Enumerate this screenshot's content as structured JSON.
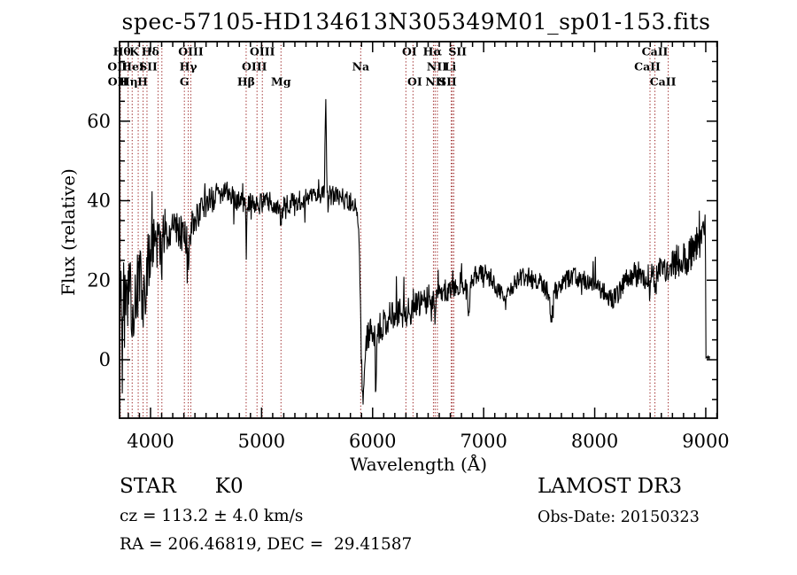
{
  "title": "spec-57105-HD134613N305349M01_sp01-153.fits",
  "footer": {
    "class_label": "STAR",
    "subclass": "K0",
    "cz": "cz = 113.2 ± 4.0 km/s",
    "radec": "RA = 206.46819, DEC =  29.41587",
    "survey": "LAMOST DR3",
    "obs_date": "Obs-Date: 20150323"
  },
  "chart_data": {
    "type": "line",
    "title": "spec-57105-HD134613N305349M01_sp01-153.fits",
    "xlabel": "Wavelength (Å)",
    "ylabel": "Flux (relative)",
    "xlim": [
      3721,
      9104
    ],
    "ylim": [
      -14.7,
      80
    ],
    "x_major_ticks": [
      4000,
      5000,
      6000,
      7000,
      8000,
      9000
    ],
    "x_minor_step": 100,
    "y_major_ticks": [
      0,
      20,
      40,
      60
    ],
    "y_minor_step": 5,
    "grid": false,
    "legend": "none",
    "line_color": "#000000",
    "marker_color": "#a13030",
    "label_row_y": {
      "1": 58,
      "2": 75,
      "3": 92
    },
    "line_markers": [
      {
        "label": "Hθ",
        "wavelength": 3798,
        "row": 1,
        "dx": -7
      },
      {
        "label": "K",
        "wavelength": 3933,
        "row": 1,
        "dx": -10
      },
      {
        "label": "Hδ",
        "wavelength": 4102,
        "row": 1,
        "dx": -13
      },
      {
        "label": "OIII",
        "wavelength": 4363,
        "row": 1,
        "dx": 0
      },
      {
        "label": "OIII",
        "wavelength": 5007,
        "row": 1,
        "dx": 0
      },
      {
        "label": "OI",
        "wavelength": 6300,
        "row": 1,
        "dx": 4
      },
      {
        "label": "Hα",
        "wavelength": 6563,
        "row": 1,
        "dx": -3
      },
      {
        "label": "SII",
        "wavelength": 6717,
        "row": 1,
        "dx": 6
      },
      {
        "label": "CaII",
        "wavelength": 8542,
        "row": 1,
        "dx": 0
      },
      {
        "label": "OII",
        "wavelength": 3726,
        "row": 2,
        "dx": -3
      },
      {
        "label": "HeI",
        "wavelength": 3889,
        "row": 2,
        "dx": -6
      },
      {
        "label": "SII",
        "wavelength": 4068,
        "row": 2,
        "dx": -11
      },
      {
        "label": "Hγ",
        "wavelength": 4340,
        "row": 2,
        "dx": 0
      },
      {
        "label": "OIII",
        "wavelength": 4959,
        "row": 2,
        "dx": -3
      },
      {
        "label": "Na",
        "wavelength": 5893,
        "row": 2,
        "dx": 0
      },
      {
        "label": "NII",
        "wavelength": 6548,
        "row": 2,
        "dx": 4
      },
      {
        "label": "Li",
        "wavelength": 6708,
        "row": 2,
        "dx": -1
      },
      {
        "label": "CaII",
        "wavelength": 8498,
        "row": 2,
        "dx": -3
      },
      {
        "label": "OII",
        "wavelength": 3729,
        "row": 3,
        "dx": -3
      },
      {
        "label": "Hη",
        "wavelength": 3835,
        "row": 3,
        "dx": -4
      },
      {
        "label": "H",
        "wavelength": 3968,
        "row": 3,
        "dx": -5
      },
      {
        "label": "G",
        "wavelength": 4305,
        "row": 3,
        "dx": 0
      },
      {
        "label": "Hβ",
        "wavelength": 4861,
        "row": 3,
        "dx": 0
      },
      {
        "label": "Mg",
        "wavelength": 5175,
        "row": 3,
        "dx": 0
      },
      {
        "label": "OI",
        "wavelength": 6364,
        "row": 3,
        "dx": 2
      },
      {
        "label": "NII",
        "wavelength": 6583,
        "row": 3,
        "dx": -2
      },
      {
        "label": "SII",
        "wavelength": 6731,
        "row": 3,
        "dx": -7
      },
      {
        "label": "CaII",
        "wavelength": 8662,
        "row": 3,
        "dx": -6
      }
    ],
    "spectrum": {
      "seed": 20150323,
      "step": 4,
      "x_start": 3722,
      "x_end": 9035,
      "continuum": [
        [
          3722,
          10
        ],
        [
          3735,
          17
        ],
        [
          3750,
          14
        ],
        [
          3765,
          19
        ],
        [
          3780,
          17
        ],
        [
          3800,
          20
        ],
        [
          3820,
          15
        ],
        [
          3840,
          13
        ],
        [
          3860,
          15
        ],
        [
          3885,
          18
        ],
        [
          3905,
          21
        ],
        [
          3925,
          16
        ],
        [
          3940,
          15
        ],
        [
          3955,
          19
        ],
        [
          3970,
          23
        ],
        [
          3990,
          26
        ],
        [
          4010,
          29
        ],
        [
          4030,
          31
        ],
        [
          4050,
          29
        ],
        [
          4070,
          28
        ],
        [
          4090,
          29
        ],
        [
          4110,
          30
        ],
        [
          4130,
          32
        ],
        [
          4160,
          33
        ],
        [
          4190,
          34
        ],
        [
          4220,
          34
        ],
        [
          4250,
          33
        ],
        [
          4280,
          32
        ],
        [
          4310,
          31
        ],
        [
          4345,
          31
        ],
        [
          4380,
          34
        ],
        [
          4420,
          36
        ],
        [
          4460,
          38
        ],
        [
          4500,
          39
        ],
        [
          4540,
          40
        ],
        [
          4580,
          41
        ],
        [
          4620,
          41
        ],
        [
          4660,
          42
        ],
        [
          4700,
          42
        ],
        [
          4740,
          41
        ],
        [
          4780,
          40
        ],
        [
          4820,
          40
        ],
        [
          4860,
          38
        ],
        [
          4900,
          40
        ],
        [
          4940,
          39
        ],
        [
          4980,
          39
        ],
        [
          5020,
          40
        ],
        [
          5060,
          40
        ],
        [
          5100,
          39
        ],
        [
          5140,
          38
        ],
        [
          5180,
          38
        ],
        [
          5220,
          39
        ],
        [
          5260,
          39
        ],
        [
          5300,
          40
        ],
        [
          5340,
          40
        ],
        [
          5380,
          40
        ],
        [
          5420,
          41
        ],
        [
          5460,
          41
        ],
        [
          5500,
          41
        ],
        [
          5540,
          42
        ],
        [
          5580,
          42
        ],
        [
          5620,
          42
        ],
        [
          5660,
          41
        ],
        [
          5700,
          41
        ],
        [
          5740,
          40
        ],
        [
          5780,
          40
        ],
        [
          5820,
          39
        ],
        [
          5855,
          38
        ],
        [
          5875,
          33
        ],
        [
          5888,
          18
        ],
        [
          5896,
          4
        ],
        [
          5904,
          -5
        ],
        [
          5912,
          -9
        ],
        [
          5922,
          -5
        ],
        [
          5932,
          0
        ],
        [
          5945,
          4
        ],
        [
          5960,
          6
        ],
        [
          5980,
          7
        ],
        [
          6000,
          8
        ],
        [
          6030,
          7
        ],
        [
          6060,
          8
        ],
        [
          6090,
          9
        ],
        [
          6120,
          10
        ],
        [
          6160,
          11
        ],
        [
          6200,
          12
        ],
        [
          6240,
          12
        ],
        [
          6280,
          11
        ],
        [
          6320,
          12
        ],
        [
          6360,
          13
        ],
        [
          6400,
          14
        ],
        [
          6440,
          14
        ],
        [
          6480,
          15
        ],
        [
          6520,
          15
        ],
        [
          6560,
          16
        ],
        [
          6600,
          16
        ],
        [
          6640,
          17
        ],
        [
          6680,
          17
        ],
        [
          6720,
          18
        ],
        [
          6760,
          19
        ],
        [
          6800,
          19
        ],
        [
          6840,
          18
        ],
        [
          6880,
          19
        ],
        [
          6920,
          21
        ],
        [
          6960,
          22
        ],
        [
          7000,
          22
        ],
        [
          7040,
          21
        ],
        [
          7080,
          20
        ],
        [
          7120,
          18
        ],
        [
          7160,
          17
        ],
        [
          7200,
          16
        ],
        [
          7240,
          17
        ],
        [
          7280,
          19
        ],
        [
          7320,
          20
        ],
        [
          7360,
          21
        ],
        [
          7400,
          21
        ],
        [
          7440,
          20
        ],
        [
          7480,
          20
        ],
        [
          7520,
          19
        ],
        [
          7560,
          18
        ],
        [
          7600,
          16
        ],
        [
          7640,
          17
        ],
        [
          7680,
          18
        ],
        [
          7720,
          19
        ],
        [
          7760,
          20
        ],
        [
          7800,
          21
        ],
        [
          7840,
          21
        ],
        [
          7880,
          20
        ],
        [
          7920,
          20
        ],
        [
          7960,
          19
        ],
        [
          8000,
          19
        ],
        [
          8040,
          18
        ],
        [
          8080,
          17
        ],
        [
          8120,
          16
        ],
        [
          8160,
          15
        ],
        [
          8200,
          16
        ],
        [
          8240,
          18
        ],
        [
          8280,
          20
        ],
        [
          8320,
          21
        ],
        [
          8360,
          22
        ],
        [
          8400,
          22
        ],
        [
          8440,
          21
        ],
        [
          8480,
          21
        ],
        [
          8520,
          21
        ],
        [
          8560,
          22
        ],
        [
          8600,
          23
        ],
        [
          8640,
          23
        ],
        [
          8680,
          24
        ],
        [
          8720,
          24
        ],
        [
          8760,
          25
        ],
        [
          8800,
          25
        ],
        [
          8840,
          26
        ],
        [
          8880,
          27
        ],
        [
          8920,
          28
        ],
        [
          8960,
          30
        ],
        [
          8985,
          32
        ],
        [
          8996,
          34
        ],
        [
          8999,
          20
        ],
        [
          9001,
          0
        ],
        [
          9010,
          0.5
        ],
        [
          9035,
          0.5
        ]
      ],
      "noise_regions": [
        [
          3722,
          3800,
          12
        ],
        [
          3800,
          3900,
          10
        ],
        [
          3900,
          3995,
          8
        ],
        [
          3995,
          4150,
          7
        ],
        [
          4150,
          4400,
          5
        ],
        [
          4400,
          4600,
          3.5
        ],
        [
          4600,
          5860,
          2.6
        ],
        [
          5860,
          5935,
          3.5
        ],
        [
          5935,
          6100,
          4.2
        ],
        [
          6100,
          6500,
          3.8
        ],
        [
          6500,
          7000,
          3.0
        ],
        [
          7000,
          8300,
          2.6
        ],
        [
          8300,
          8700,
          3.2
        ],
        [
          8700,
          8999,
          4.5
        ],
        [
          8999,
          9035,
          0.7
        ]
      ],
      "features": [
        [
          5577,
          24,
          5
        ],
        [
          4861,
          -11,
          3.5
        ],
        [
          4340,
          -9,
          3.5
        ],
        [
          4102,
          -6,
          4
        ],
        [
          3933,
          -7,
          4
        ],
        [
          6563,
          -5,
          3
        ],
        [
          6867,
          -7,
          7
        ],
        [
          7607,
          -7,
          9
        ],
        [
          7180,
          -3,
          12
        ],
        [
          8498,
          -5,
          4
        ],
        [
          8542,
          -5,
          4
        ],
        [
          8662,
          -5,
          4
        ],
        [
          5175,
          -4,
          6
        ],
        [
          6030,
          -17,
          5
        ],
        [
          3745,
          -14,
          4
        ]
      ]
    }
  }
}
